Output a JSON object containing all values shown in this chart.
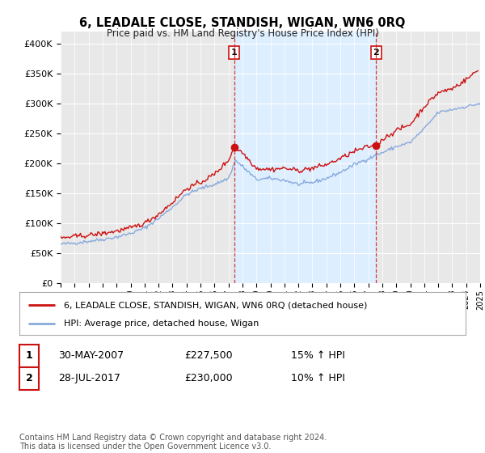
{
  "title": "6, LEADALE CLOSE, STANDISH, WIGAN, WN6 0RQ",
  "subtitle": "Price paid vs. HM Land Registry's House Price Index (HPI)",
  "background_color": "#ffffff",
  "plot_bg_color": "#e8e8e8",
  "hpi_color": "#88aadd",
  "price_color": "#cc1111",
  "shade_color": "#ddeeff",
  "legend_label1": "6, LEADALE CLOSE, STANDISH, WIGAN, WN6 0RQ (detached house)",
  "legend_label2": "HPI: Average price, detached house, Wigan",
  "table_row1": [
    "1",
    "30-MAY-2007",
    "£227,500",
    "15% ↑ HPI"
  ],
  "table_row2": [
    "2",
    "28-JUL-2017",
    "£230,000",
    "10% ↑ HPI"
  ],
  "footer": "Contains HM Land Registry data © Crown copyright and database right 2024.\nThis data is licensed under the Open Government Licence v3.0.",
  "sale1_x": 2007.41,
  "sale1_y": 227500,
  "sale2_x": 2017.57,
  "sale2_y": 230000,
  "xmin": 1995,
  "xmax": 2025,
  "ylim": [
    0,
    420000
  ],
  "yticks": [
    0,
    50000,
    100000,
    150000,
    200000,
    250000,
    300000,
    350000,
    400000
  ]
}
